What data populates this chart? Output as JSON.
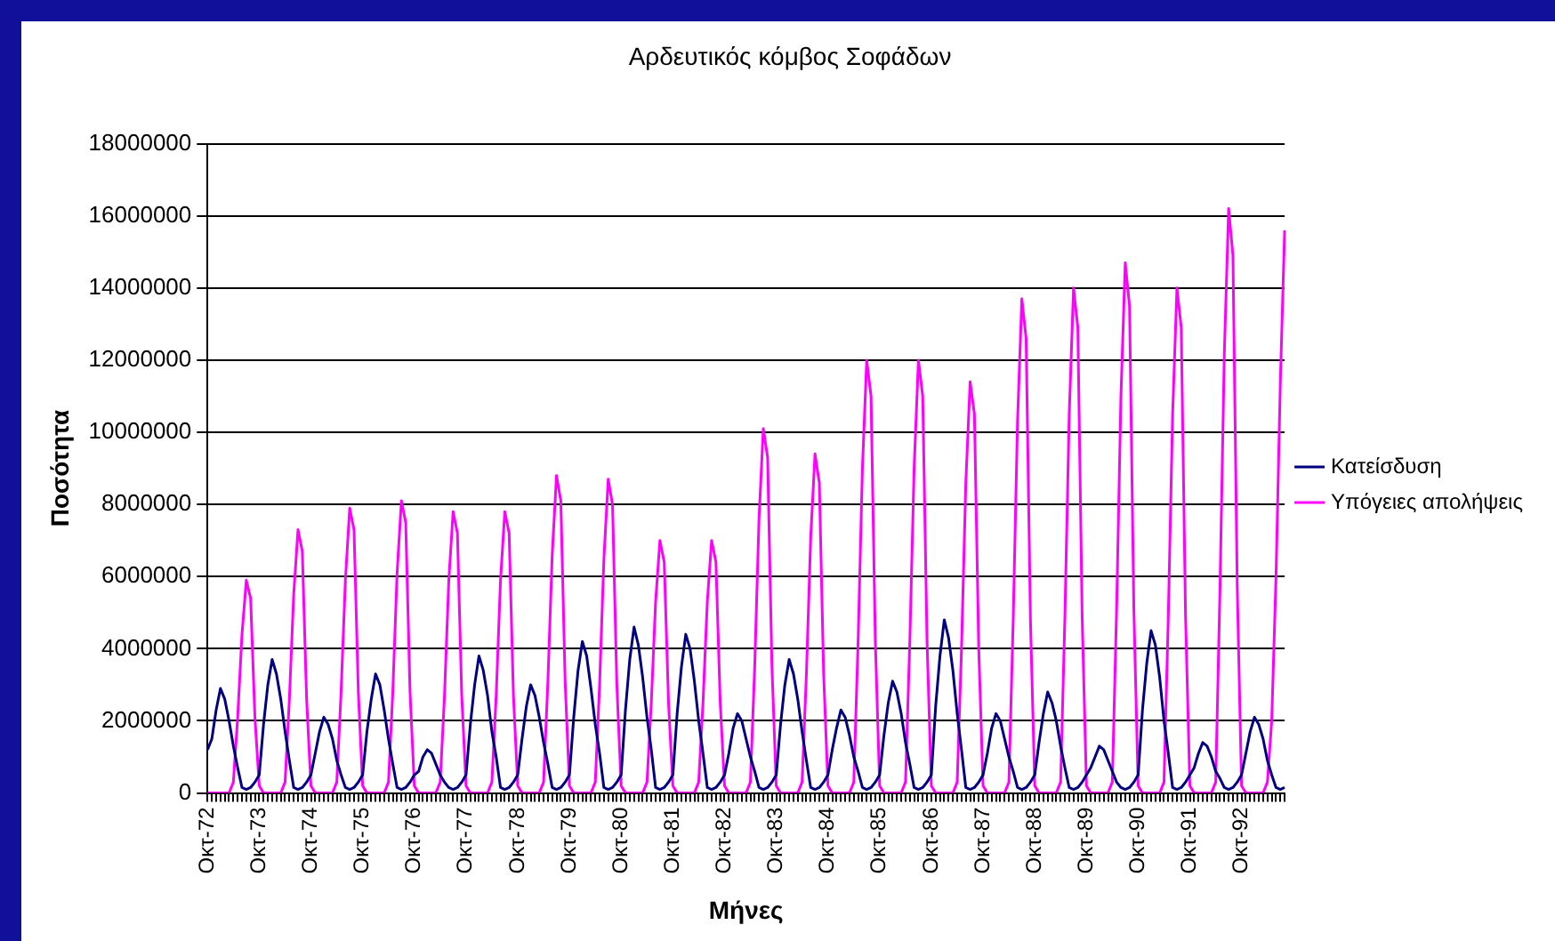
{
  "chart_data": {
    "type": "line",
    "title": "Αρδευτικός κόμβος Σοφάδων",
    "xlabel": "Μήνες",
    "ylabel": "Ποσότητα",
    "categories": [
      "Οκτ-72",
      null,
      null,
      null,
      null,
      null,
      null,
      null,
      null,
      null,
      null,
      null,
      "Οκτ-73",
      null,
      null,
      null,
      null,
      null,
      null,
      null,
      null,
      null,
      null,
      null,
      "Οκτ-74",
      null,
      null,
      null,
      null,
      null,
      null,
      null,
      null,
      null,
      null,
      null,
      "Οκτ-75",
      null,
      null,
      null,
      null,
      null,
      null,
      null,
      null,
      null,
      null,
      null,
      "Οκτ-76",
      null,
      null,
      null,
      null,
      null,
      null,
      null,
      null,
      null,
      null,
      null,
      "Οκτ-77",
      null,
      null,
      null,
      null,
      null,
      null,
      null,
      null,
      null,
      null,
      null,
      "Οκτ-78",
      null,
      null,
      null,
      null,
      null,
      null,
      null,
      null,
      null,
      null,
      null,
      "Οκτ-79",
      null,
      null,
      null,
      null,
      null,
      null,
      null,
      null,
      null,
      null,
      null,
      "Οκτ-80",
      null,
      null,
      null,
      null,
      null,
      null,
      null,
      null,
      null,
      null,
      null,
      "Οκτ-81",
      null,
      null,
      null,
      null,
      null,
      null,
      null,
      null,
      null,
      null,
      null,
      "Οκτ-82",
      null,
      null,
      null,
      null,
      null,
      null,
      null,
      null,
      null,
      null,
      null,
      "Οκτ-83",
      null,
      null,
      null,
      null,
      null,
      null,
      null,
      null,
      null,
      null,
      null,
      "Οκτ-84",
      null,
      null,
      null,
      null,
      null,
      null,
      null,
      null,
      null,
      null,
      null,
      "Οκτ-85",
      null,
      null,
      null,
      null,
      null,
      null,
      null,
      null,
      null,
      null,
      null,
      "Οκτ-86",
      null,
      null,
      null,
      null,
      null,
      null,
      null,
      null,
      null,
      null,
      null,
      "Οκτ-87",
      null,
      null,
      null,
      null,
      null,
      null,
      null,
      null,
      null,
      null,
      null,
      "Οκτ-88",
      null,
      null,
      null,
      null,
      null,
      null,
      null,
      null,
      null,
      null,
      null,
      "Οκτ-89",
      null,
      null,
      null,
      null,
      null,
      null,
      null,
      null,
      null,
      null,
      null,
      "Οκτ-90",
      null,
      null,
      null,
      null,
      null,
      null,
      null,
      null,
      null,
      null,
      null,
      "Οκτ-91",
      null,
      null,
      null,
      null,
      null,
      null,
      null,
      null,
      null,
      null,
      null,
      "Οκτ-92",
      null,
      null,
      null,
      null,
      null,
      null,
      null,
      null,
      null,
      null
    ],
    "series": [
      {
        "name": "Κατείσδυση",
        "color": "#000080",
        "values": [
          1200000,
          1500000,
          2300000,
          2900000,
          2600000,
          2000000,
          1300000,
          700000,
          150000,
          100000,
          150000,
          300000,
          500000,
          1900000,
          3000000,
          3700000,
          3300000,
          2600000,
          1700000,
          900000,
          150000,
          100000,
          150000,
          300000,
          500000,
          1100000,
          1700000,
          2100000,
          1900000,
          1500000,
          900000,
          500000,
          150000,
          100000,
          150000,
          300000,
          500000,
          1700000,
          2600000,
          3300000,
          3000000,
          2300000,
          1500000,
          800000,
          150000,
          100000,
          150000,
          300000,
          500000,
          600000,
          1000000,
          1200000,
          1100000,
          800000,
          500000,
          300000,
          150000,
          100000,
          150000,
          300000,
          500000,
          1900000,
          3000000,
          3800000,
          3400000,
          2700000,
          1700000,
          1000000,
          150000,
          100000,
          150000,
          300000,
          500000,
          1500000,
          2400000,
          3000000,
          2700000,
          2100000,
          1400000,
          800000,
          150000,
          100000,
          150000,
          300000,
          500000,
          2100000,
          3400000,
          4200000,
          3800000,
          2900000,
          1900000,
          1100000,
          150000,
          100000,
          150000,
          300000,
          500000,
          2300000,
          3700000,
          4600000,
          4100000,
          3200000,
          2100000,
          1200000,
          150000,
          100000,
          150000,
          300000,
          500000,
          2200000,
          3500000,
          4400000,
          4000000,
          3100000,
          2000000,
          1100000,
          150000,
          100000,
          150000,
          300000,
          500000,
          1100000,
          1800000,
          2200000,
          2000000,
          1500000,
          1000000,
          600000,
          150000,
          100000,
          150000,
          300000,
          500000,
          1900000,
          3000000,
          3700000,
          3300000,
          2600000,
          1700000,
          900000,
          150000,
          100000,
          150000,
          300000,
          500000,
          1200000,
          1800000,
          2300000,
          2100000,
          1600000,
          1000000,
          600000,
          150000,
          100000,
          150000,
          300000,
          500000,
          1600000,
          2500000,
          3100000,
          2800000,
          2200000,
          1400000,
          800000,
          150000,
          100000,
          150000,
          300000,
          500000,
          2400000,
          3800000,
          4800000,
          4300000,
          3400000,
          2200000,
          1200000,
          150000,
          100000,
          150000,
          300000,
          500000,
          1100000,
          1800000,
          2200000,
          2000000,
          1500000,
          1000000,
          600000,
          150000,
          100000,
          150000,
          300000,
          500000,
          1400000,
          2200000,
          2800000,
          2500000,
          2000000,
          1300000,
          700000,
          150000,
          100000,
          150000,
          300000,
          500000,
          700000,
          1000000,
          1300000,
          1200000,
          900000,
          600000,
          300000,
          150000,
          100000,
          150000,
          300000,
          500000,
          2300000,
          3600000,
          4500000,
          4100000,
          3200000,
          2000000,
          1100000,
          150000,
          100000,
          150000,
          300000,
          500000,
          700000,
          1100000,
          1400000,
          1300000,
          1000000,
          600000,
          400000,
          150000,
          100000,
          150000,
          300000,
          500000,
          1100000,
          1700000,
          2100000,
          1900000,
          1500000,
          900000,
          500000,
          150000,
          100000,
          150000
        ]
      },
      {
        "name": "Υπόγειες απολήψεις",
        "color": "#ff00ff",
        "values": [
          0,
          0,
          0,
          0,
          0,
          0,
          300000,
          2100000,
          4400000,
          5900000,
          5400000,
          2100000,
          200000,
          0,
          0,
          0,
          0,
          0,
          300000,
          2600000,
          5500000,
          7300000,
          6700000,
          2600000,
          200000,
          0,
          0,
          0,
          0,
          0,
          300000,
          2800000,
          5900000,
          7900000,
          7300000,
          2800000,
          200000,
          0,
          0,
          0,
          0,
          0,
          300000,
          2800000,
          6100000,
          8100000,
          7500000,
          2800000,
          200000,
          0,
          0,
          0,
          0,
          0,
          300000,
          2700000,
          5900000,
          7800000,
          7200000,
          2700000,
          200000,
          0,
          0,
          0,
          0,
          0,
          300000,
          2700000,
          5900000,
          7800000,
          7200000,
          2700000,
          200000,
          0,
          0,
          0,
          0,
          0,
          300000,
          3100000,
          6600000,
          8800000,
          8100000,
          3100000,
          200000,
          0,
          0,
          0,
          0,
          0,
          300000,
          3000000,
          6500000,
          8700000,
          8000000,
          3000000,
          200000,
          0,
          0,
          0,
          0,
          0,
          300000,
          2500000,
          5300000,
          7000000,
          6400000,
          2500000,
          200000,
          0,
          0,
          0,
          0,
          0,
          300000,
          2500000,
          5300000,
          7000000,
          6400000,
          2500000,
          200000,
          0,
          0,
          0,
          0,
          0,
          300000,
          3500000,
          7600000,
          10100000,
          9300000,
          3500000,
          200000,
          0,
          0,
          0,
          0,
          0,
          300000,
          3300000,
          7100000,
          9400000,
          8600000,
          3300000,
          200000,
          0,
          0,
          0,
          0,
          0,
          300000,
          4200000,
          9000000,
          12000000,
          11000000,
          4200000,
          200000,
          0,
          0,
          0,
          0,
          0,
          300000,
          4200000,
          9000000,
          12000000,
          11000000,
          4200000,
          200000,
          0,
          0,
          0,
          0,
          0,
          300000,
          4000000,
          8600000,
          11400000,
          10500000,
          4000000,
          200000,
          0,
          0,
          0,
          0,
          0,
          300000,
          4800000,
          10300000,
          13700000,
          12600000,
          4800000,
          200000,
          0,
          0,
          0,
          0,
          0,
          300000,
          4900000,
          10500000,
          14000000,
          12900000,
          4900000,
          200000,
          0,
          0,
          0,
          0,
          0,
          300000,
          5100000,
          11000000,
          14700000,
          13500000,
          5100000,
          200000,
          0,
          0,
          0,
          0,
          0,
          300000,
          4900000,
          10500000,
          14000000,
          12900000,
          4900000,
          200000,
          0,
          0,
          0,
          0,
          0,
          300000,
          5700000,
          12200000,
          16200000,
          14900000,
          5700000,
          200000,
          0,
          0,
          0,
          0,
          0,
          300000,
          2000000,
          6000000,
          11400000,
          15600000
        ]
      }
    ],
    "ylim": [
      0,
      18000000
    ],
    "yticks": [
      0,
      2000000,
      4000000,
      6000000,
      8000000,
      10000000,
      12000000,
      14000000,
      16000000,
      18000000
    ],
    "grid": "y",
    "legend": "right",
    "marker": "none"
  }
}
